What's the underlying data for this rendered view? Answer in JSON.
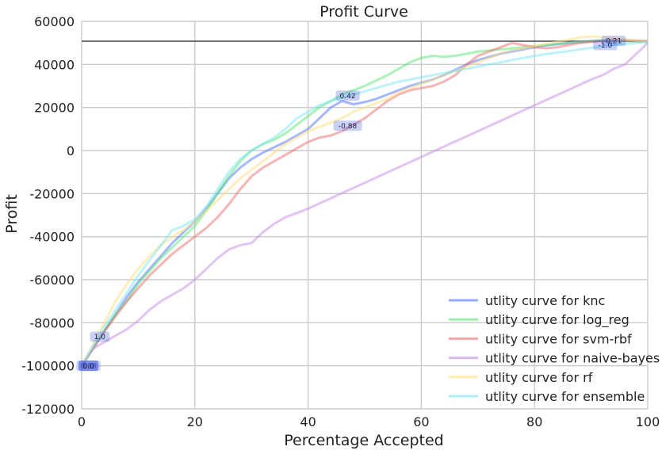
{
  "chart_data": {
    "type": "line",
    "title": "Profit Curve",
    "xlabel": "Percentage Accepted",
    "ylabel": "Profit",
    "xlim": [
      0,
      100
    ],
    "ylim": [
      -120000,
      60000
    ],
    "x_ticks": [
      0,
      20,
      40,
      60,
      80,
      100
    ],
    "y_ticks": [
      -120000,
      -100000,
      -80000,
      -60000,
      -40000,
      -20000,
      0,
      20000,
      40000,
      60000
    ],
    "grid": true,
    "legend_position": "lower-right",
    "reference_line_y": 50800,
    "series": [
      {
        "name": "utlity curve for knc",
        "color": "#4c72ff",
        "x": [
          0,
          2,
          4,
          6,
          8,
          10,
          12,
          14,
          16,
          18,
          20,
          22,
          24,
          26,
          28,
          30,
          32,
          34,
          36,
          38,
          40,
          42,
          44,
          46,
          48,
          50,
          52,
          54,
          56,
          58,
          60,
          62,
          64,
          66,
          68,
          70,
          72,
          74,
          76,
          78,
          80,
          82,
          84,
          86,
          88,
          90,
          92,
          94,
          96,
          98,
          100
        ],
        "y": [
          -100000,
          -92000,
          -84000,
          -76000,
          -68000,
          -61000,
          -55000,
          -49000,
          -43000,
          -38000,
          -33000,
          -27000,
          -20000,
          -13000,
          -8000,
          -4000,
          -1000,
          1500,
          4000,
          7000,
          10000,
          15000,
          20000,
          23000,
          21500,
          22500,
          24000,
          26000,
          28000,
          30000,
          31500,
          33000,
          35000,
          37500,
          40000,
          42000,
          43500,
          45000,
          46000,
          47000,
          48000,
          48800,
          49400,
          50000,
          50400,
          50700,
          51000,
          51200,
          51100,
          50900,
          50800
        ]
      },
      {
        "name": "utlity curve for log_reg",
        "color": "#55e870",
        "x": [
          0,
          2,
          4,
          6,
          8,
          10,
          12,
          14,
          16,
          18,
          20,
          22,
          24,
          26,
          28,
          30,
          32,
          34,
          36,
          38,
          40,
          42,
          44,
          46,
          48,
          50,
          52,
          54,
          56,
          58,
          60,
          62,
          64,
          66,
          68,
          70,
          72,
          74,
          76,
          78,
          80,
          82,
          84,
          86,
          88,
          90,
          92,
          94,
          96,
          98,
          100
        ],
        "y": [
          -100000,
          -92000,
          -84000,
          -76000,
          -70000,
          -62000,
          -56000,
          -50000,
          -45000,
          -40000,
          -35000,
          -28000,
          -20000,
          -12000,
          -5000,
          0,
          3000,
          5000,
          8000,
          12000,
          16000,
          20000,
          23000,
          26000,
          28000,
          30000,
          32500,
          35000,
          38000,
          41000,
          43000,
          44000,
          43500,
          44000,
          45000,
          46000,
          46500,
          47000,
          47500,
          48000,
          48500,
          49000,
          49500,
          50000,
          50500,
          51000,
          51300,
          51000,
          50800,
          50600,
          50500
        ]
      },
      {
        "name": "utlity curve for svm-rbf",
        "color": "#ee6b6b",
        "x": [
          0,
          2,
          4,
          6,
          8,
          10,
          12,
          14,
          16,
          18,
          20,
          22,
          24,
          26,
          28,
          30,
          32,
          34,
          36,
          38,
          40,
          42,
          44,
          46,
          48,
          50,
          52,
          54,
          56,
          58,
          60,
          62,
          64,
          66,
          68,
          70,
          72,
          74,
          76,
          78,
          80,
          82,
          84,
          86,
          88,
          90,
          92,
          94,
          96,
          98,
          100
        ],
        "y": [
          -100000,
          -92000,
          -84000,
          -77000,
          -70000,
          -64000,
          -58000,
          -53000,
          -48000,
          -44000,
          -40000,
          -36000,
          -31000,
          -25000,
          -18000,
          -12000,
          -8000,
          -5000,
          -2000,
          1000,
          4000,
          6000,
          7000,
          9000,
          12000,
          15000,
          19000,
          23000,
          26000,
          28000,
          29000,
          30000,
          32000,
          35000,
          40000,
          44000,
          46000,
          48000,
          50000,
          49000,
          48000,
          47500,
          48000,
          49000,
          50000,
          50500,
          51000,
          51500,
          51200,
          51000,
          50800
        ]
      },
      {
        "name": "utlity curve for naive-bayes",
        "color": "#c58ae8",
        "x": [
          0,
          2,
          4,
          6,
          8,
          10,
          12,
          14,
          16,
          18,
          20,
          22,
          24,
          26,
          28,
          30,
          32,
          34,
          36,
          38,
          40,
          45,
          50,
          55,
          60,
          65,
          70,
          75,
          80,
          85,
          90,
          92,
          94,
          96,
          98,
          100
        ],
        "y": [
          -100000,
          -92000,
          -89000,
          -86000,
          -83000,
          -79000,
          -74000,
          -70000,
          -67000,
          -64000,
          -60000,
          -55000,
          -50000,
          -46000,
          -44000,
          -43000,
          -38000,
          -34000,
          -31000,
          -29000,
          -27000,
          -21000,
          -15000,
          -9000,
          -3000,
          3000,
          9000,
          15000,
          21000,
          27000,
          33000,
          35000,
          38000,
          40000,
          45000,
          50000
        ]
      },
      {
        "name": "utlity curve for rf",
        "color": "#ffde7a",
        "x": [
          0,
          2,
          4,
          6,
          8,
          10,
          12,
          14,
          16,
          18,
          20,
          22,
          24,
          26,
          28,
          30,
          32,
          34,
          36,
          38,
          40,
          42,
          44,
          46,
          48,
          50,
          52,
          54,
          56,
          58,
          60,
          62,
          64,
          66,
          68,
          70,
          72,
          74,
          76,
          78,
          80,
          82,
          84,
          86,
          88,
          90,
          92,
          94,
          96,
          98,
          100
        ],
        "y": [
          -100000,
          -90000,
          -80000,
          -70000,
          -62000,
          -55000,
          -49000,
          -44000,
          -40000,
          -37000,
          -33000,
          -28000,
          -23000,
          -18000,
          -13000,
          -9000,
          -5000,
          -1000,
          3000,
          6000,
          9000,
          11000,
          13000,
          15000,
          18000,
          20000,
          22000,
          24000,
          27000,
          29000,
          31000,
          33000,
          35000,
          37000,
          39000,
          41000,
          43000,
          45000,
          46500,
          47500,
          48500,
          49500,
          50500,
          51500,
          52500,
          53000,
          52800,
          52200,
          51600,
          51100,
          50800
        ]
      },
      {
        "name": "utlity curve for ensemble",
        "color": "#7ae5f5",
        "x": [
          0,
          2,
          4,
          6,
          8,
          10,
          12,
          14,
          16,
          18,
          20,
          22,
          24,
          26,
          28,
          30,
          32,
          34,
          36,
          38,
          40,
          42,
          44,
          46,
          48,
          50,
          52,
          54,
          56,
          58,
          60,
          62,
          64,
          66,
          68,
          70,
          72,
          74,
          76,
          78,
          80,
          82,
          84,
          86,
          88,
          90,
          92,
          94,
          96,
          98,
          100
        ],
        "y": [
          -100000,
          -91000,
          -82000,
          -74000,
          -66000,
          -58000,
          -51000,
          -44000,
          -37000,
          -35000,
          -32000,
          -26000,
          -18000,
          -10000,
          -4000,
          0,
          3000,
          6000,
          10000,
          15000,
          18000,
          21000,
          23000,
          24500,
          26000,
          27500,
          29000,
          30500,
          32000,
          33000,
          34000,
          35000,
          36000,
          37000,
          38000,
          39000,
          40000,
          41000,
          42000,
          43000,
          44000,
          44800,
          45500,
          46200,
          47000,
          47700,
          48400,
          49000,
          49500,
          50000,
          50500
        ]
      }
    ],
    "annotations": [
      {
        "text": "0.21",
        "x": 94,
        "y": 51000
      },
      {
        "text": "-1.0",
        "x": 92.5,
        "y": 49000
      },
      {
        "text": "0.42",
        "x": 47,
        "y": 25500
      },
      {
        "text": "-0.88",
        "x": 47,
        "y": 11500
      },
      {
        "text": "1.0",
        "x": 3.2,
        "y": -86500
      },
      {
        "text": "0.88",
        "x": 1.2,
        "y": -100000
      },
      {
        "text": "0.0",
        "x": 1.2,
        "y": -100000
      },
      {
        "text": "0.0",
        "x": 1.2,
        "y": -100000
      },
      {
        "text": "0.0",
        "x": 1.2,
        "y": -100000
      }
    ]
  }
}
